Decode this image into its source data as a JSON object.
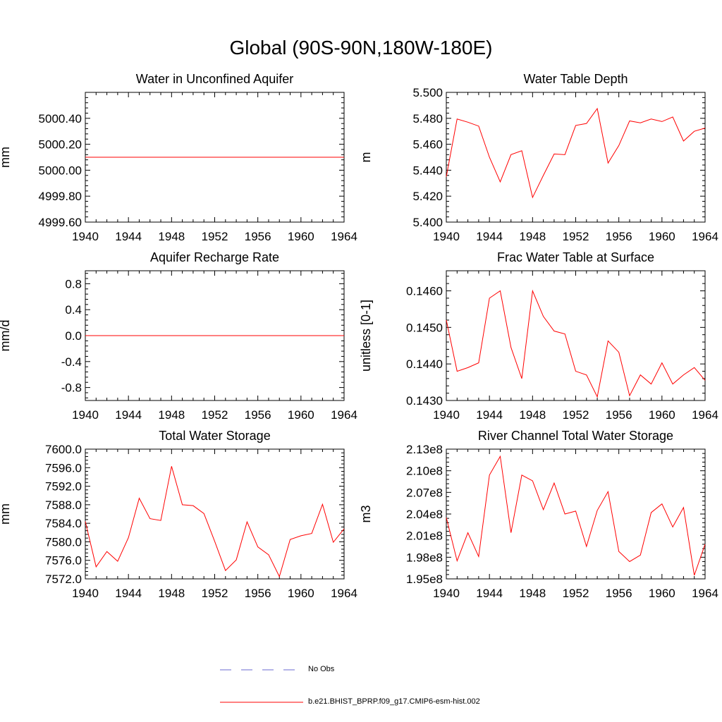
{
  "title": "Global (90S-90N,180W-180E)",
  "legend": [
    {
      "label": "No Obs",
      "color": "#6a6ad0",
      "style": "dashed"
    },
    {
      "label": "b.e21.BHIST_BPRP.f09_g17.CMIP6-esm-hist.002",
      "color": "#ff0000",
      "style": "solid"
    }
  ],
  "colors": {
    "series": "#ff0000",
    "obs": "#6a6ad0",
    "axis": "#000000"
  },
  "chart_data": [
    {
      "type": "line",
      "title": "Water in Unconfined Aquifer",
      "xlabel": "",
      "ylabel": "mm",
      "xlim": [
        1940,
        1964
      ],
      "ylim": [
        4999.6,
        5000.6
      ],
      "xticks": [
        1940,
        1944,
        1948,
        1952,
        1956,
        1960,
        1964
      ],
      "yticks": [
        4999.6,
        4999.8,
        5000.0,
        5000.2,
        5000.4
      ],
      "ytick_labels": [
        "4999.60",
        "4999.80",
        "5000.00",
        "5000.20",
        "5000.40"
      ],
      "series": [
        {
          "name": "b.e21.BHIST_BPRP.f09_g17.CMIP6-esm-hist.002",
          "x": [
            1940,
            1964
          ],
          "values": [
            5000.1,
            5000.1
          ]
        }
      ]
    },
    {
      "type": "line",
      "title": "Water Table Depth",
      "xlabel": "",
      "ylabel": "m",
      "xlim": [
        1940,
        1964
      ],
      "ylim": [
        5.4,
        5.5
      ],
      "xticks": [
        1940,
        1944,
        1948,
        1952,
        1956,
        1960,
        1964
      ],
      "yticks": [
        5.4,
        5.42,
        5.44,
        5.46,
        5.48,
        5.5
      ],
      "ytick_labels": [
        "5.400",
        "5.420",
        "5.440",
        "5.460",
        "5.480",
        "5.500"
      ],
      "series": [
        {
          "name": "b.e21.BHIST_BPRP.f09_g17.CMIP6-esm-hist.002",
          "x": [
            1940,
            1941,
            1942,
            1943,
            1944,
            1945,
            1946,
            1947,
            1948,
            1949,
            1950,
            1951,
            1952,
            1953,
            1954,
            1955,
            1956,
            1957,
            1958,
            1959,
            1960,
            1961,
            1962,
            1963,
            1964
          ],
          "values": [
            5.435,
            5.4795,
            5.477,
            5.474,
            5.45,
            5.431,
            5.452,
            5.455,
            5.419,
            5.436,
            5.4525,
            5.452,
            5.4745,
            5.476,
            5.4875,
            5.4455,
            5.459,
            5.478,
            5.4765,
            5.4795,
            5.4775,
            5.481,
            5.4625,
            5.47,
            5.4725
          ]
        }
      ]
    },
    {
      "type": "line",
      "title": "Aquifer Recharge Rate",
      "xlabel": "",
      "ylabel": "mm/d",
      "xlim": [
        1940,
        1964
      ],
      "ylim": [
        -1.0,
        1.0
      ],
      "xticks": [
        1940,
        1944,
        1948,
        1952,
        1956,
        1960,
        1964
      ],
      "yticks": [
        -0.8,
        -0.4,
        0.0,
        0.4,
        0.8
      ],
      "ytick_labels": [
        "-0.8",
        "-0.4",
        "0.0",
        "0.4",
        "0.8"
      ],
      "series": [
        {
          "name": "b.e21.BHIST_BPRP.f09_g17.CMIP6-esm-hist.002",
          "x": [
            1940,
            1964
          ],
          "values": [
            0.0,
            0.0
          ]
        }
      ]
    },
    {
      "type": "line",
      "title": "Frac Water Table at Surface",
      "xlabel": "",
      "ylabel": "unitless [0-1]",
      "xlim": [
        1940,
        1964
      ],
      "ylim": [
        0.143,
        0.14655
      ],
      "xticks": [
        1940,
        1944,
        1948,
        1952,
        1956,
        1960,
        1964
      ],
      "yticks": [
        0.143,
        0.144,
        0.145,
        0.146
      ],
      "ytick_labels": [
        "0.1430",
        "0.1440",
        "0.1450",
        "0.1460"
      ],
      "series": [
        {
          "name": "b.e21.BHIST_BPRP.f09_g17.CMIP6-esm-hist.002",
          "x": [
            1940,
            1941,
            1942,
            1943,
            1944,
            1945,
            1946,
            1947,
            1948,
            1949,
            1950,
            1951,
            1952,
            1953,
            1954,
            1955,
            1956,
            1957,
            1958,
            1959,
            1960,
            1961,
            1962,
            1963,
            1964
          ],
          "values": [
            0.1452,
            0.1438,
            0.1439,
            0.14403,
            0.1458,
            0.146,
            0.14445,
            0.1436,
            0.146,
            0.1453,
            0.1449,
            0.14482,
            0.1438,
            0.1437,
            0.1431,
            0.14463,
            0.14432,
            0.14313,
            0.1437,
            0.14345,
            0.14403,
            0.14345,
            0.1437,
            0.1439,
            0.14355
          ]
        }
      ]
    },
    {
      "type": "line",
      "title": "Total Water Storage",
      "xlabel": "",
      "ylabel": "mm",
      "xlim": [
        1940,
        1964
      ],
      "ylim": [
        7572.0,
        7600.0
      ],
      "xticks": [
        1940,
        1944,
        1948,
        1952,
        1956,
        1960,
        1964
      ],
      "yticks": [
        7572,
        7576,
        7580,
        7584,
        7588,
        7592,
        7596,
        7600
      ],
      "ytick_labels": [
        "7572.0",
        "7576.0",
        "7580.0",
        "7584.0",
        "7588.0",
        "7592.0",
        "7596.0",
        "7600.0"
      ],
      "series": [
        {
          "name": "b.e21.BHIST_BPRP.f09_g17.CMIP6-esm-hist.002",
          "x": [
            1940,
            1941,
            1942,
            1943,
            1944,
            1945,
            1946,
            1947,
            1948,
            1949,
            1950,
            1951,
            1952,
            1953,
            1954,
            1955,
            1956,
            1957,
            1958,
            1959,
            1960,
            1961,
            1962,
            1963,
            1964
          ],
          "values": [
            7584.4,
            7574.6,
            7577.9,
            7575.8,
            7580.9,
            7589.4,
            7585.0,
            7584.6,
            7596.3,
            7588.0,
            7587.8,
            7586.1,
            7580.1,
            7573.8,
            7576.1,
            7584.3,
            7578.9,
            7577.2,
            7572.5,
            7580.5,
            7581.3,
            7581.8,
            7588.1,
            7579.9,
            7582.8
          ]
        }
      ]
    },
    {
      "type": "line",
      "title": "River Channel Total Water Storage",
      "xlabel": "",
      "ylabel": "m3",
      "xlim": [
        1940,
        1964
      ],
      "ylim": [
        195000000.0,
        213000000.0
      ],
      "xticks": [
        1940,
        1944,
        1948,
        1952,
        1956,
        1960,
        1964
      ],
      "yticks": [
        195000000.0,
        198000000.0,
        201000000.0,
        204000000.0,
        207000000.0,
        210000000.0,
        213000000.0
      ],
      "ytick_labels": [
        "1.95e8",
        "1.98e8",
        "2.01e8",
        "2.04e8",
        "2.07e8",
        "2.10e8",
        "2.13e8"
      ],
      "series": [
        {
          "name": "b.e21.BHIST_BPRP.f09_g17.CMIP6-esm-hist.002",
          "x": [
            1940,
            1941,
            1942,
            1943,
            1944,
            1945,
            1946,
            1947,
            1948,
            1949,
            1950,
            1951,
            1952,
            1953,
            1954,
            1955,
            1956,
            1957,
            1958,
            1959,
            1960,
            1961,
            1962,
            1963,
            1964
          ],
          "values": [
            203500000.0,
            197500000.0,
            201400000.0,
            198100000.0,
            209400000.0,
            212000000.0,
            201400000.0,
            209400000.0,
            208600000.0,
            204600000.0,
            208300000.0,
            204000000.0,
            204400000.0,
            199500000.0,
            204500000.0,
            207100000.0,
            198800000.0,
            197400000.0,
            198300000.0,
            204200000.0,
            205400000.0,
            202200000.0,
            204900000.0,
            195500000.0,
            199800000.0
          ]
        }
      ]
    }
  ]
}
